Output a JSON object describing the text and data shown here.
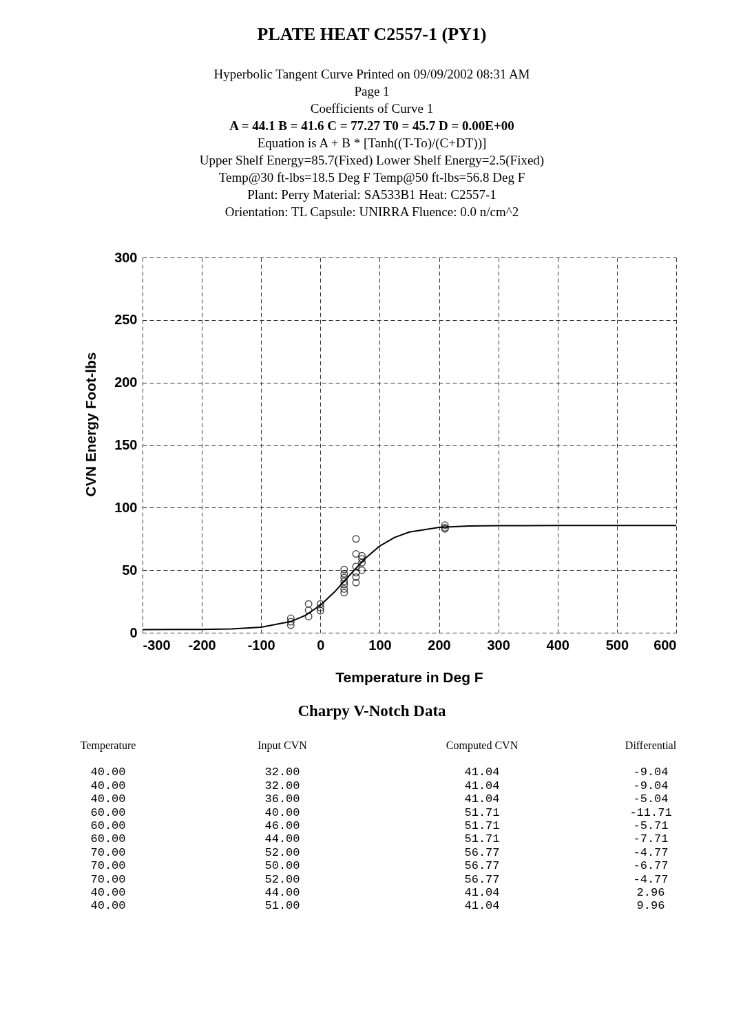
{
  "chart_data": {
    "type": "scatter",
    "title": "PLATE HEAT C2557-1 (PY1)",
    "subtitle": [
      "Hyperbolic Tangent Curve Printed on 09/09/2002 08:31 AM",
      "Page  1",
      "Coefficients of Curve  1",
      "A = 44.1  B = 41.6 C = 77.27  T0 = 45.7  D = 0.00E+00",
      "Equation is  A + B * [Tanh((T-To)/(C+DT))]",
      "Upper Shelf Energy=85.7(Fixed)          Lower Shelf Energy=2.5(Fixed)",
      "Temp@30 ft-lbs=18.5 Deg F       Temp@50 ft-lbs=56.8 Deg F",
      "Plant: Perry    Material: SA533B1     Heat: C2557-1",
      "Orientation: TL     Capsule: UNIRRA          Fluence: 0.0        n/cm^2"
    ],
    "xlabel": "Temperature in Deg F",
    "ylabel": "CVN Energy Foot-lbs",
    "xlim": [
      -300,
      600
    ],
    "xticks": [
      -300,
      -200,
      -100,
      0,
      100,
      200,
      300,
      400,
      500,
      600
    ],
    "ylim": [
      0,
      300
    ],
    "yticks": [
      0,
      50,
      100,
      150,
      200,
      250,
      300
    ],
    "grid": true,
    "series": [
      {
        "type": "line",
        "color": "#000000",
        "marker": "none",
        "line_style": "solid",
        "x": [
          -300,
          -200,
          -150,
          -100,
          -50,
          -25,
          0,
          25,
          50,
          75,
          100,
          125,
          150,
          200,
          250,
          300,
          400,
          600
        ],
        "values": [
          2.5,
          2.6,
          3.0,
          4.4,
          8.9,
          14.0,
          22.0,
          33.2,
          46.4,
          59.2,
          69.3,
          76.2,
          80.5,
          84.2,
          85.3,
          85.6,
          85.7,
          85.7
        ]
      },
      {
        "color": "#000000",
        "marker": "circle",
        "x": [
          -50,
          -50,
          -50,
          -20,
          -20,
          -20,
          0,
          0,
          0,
          40,
          40,
          40,
          40,
          40,
          40,
          40,
          60,
          60,
          60,
          60,
          60,
          60,
          70,
          70,
          70,
          70,
          210,
          210,
          210
        ],
        "values": [
          11.5,
          8.8,
          6,
          23,
          18,
          13,
          23,
          20,
          17.6,
          50.5,
          47,
          44,
          41,
          38.5,
          35,
          32,
          75,
          63,
          53,
          48,
          44.5,
          40,
          61.5,
          59,
          56,
          50,
          86,
          84,
          83
        ]
      }
    ],
    "annotations": [
      "Charpy V-Notch Data",
      "Temperature",
      "Input CVN",
      "Computed CVN",
      "Differential",
      "40.00",
      "32.00",
      "41.04",
      "-9.04",
      "40.00",
      "32.00",
      "41.04",
      "-9.04",
      "40.00",
      "36.00",
      "41.04",
      "-5.04",
      "60.00",
      "40.00",
      "51.71",
      "-11.71",
      "60.00",
      "46.00",
      "51.71",
      "-5.71",
      "60.00",
      "44.00",
      "51.71",
      "-7.71",
      "70.00",
      "52.00",
      "56.77",
      "-4.77",
      "70.00",
      "50.00",
      "56.77",
      "-6.77",
      "70.00",
      "52.00",
      "56.77",
      "-4.77",
      "40.00",
      "44.00",
      "41.04",
      "2.96",
      "40.00",
      "51.00",
      "41.04",
      "9.96"
    ]
  }
}
